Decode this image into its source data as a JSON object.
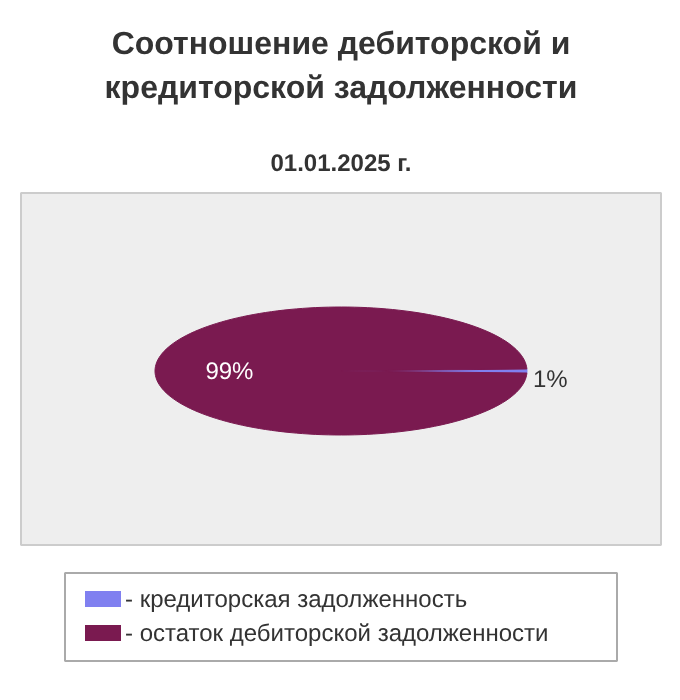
{
  "chart_data": {
    "type": "pie",
    "title": "Соотношение дебиторской и кредиторской задолженности",
    "subtitle": "01.01.2025 г.",
    "categories": [
      "- кредиторская задолженность",
      "- остаток дебиторской задолженности"
    ],
    "values": [
      1,
      99
    ],
    "colors": [
      "#8080f0",
      "#7a1a50"
    ],
    "value_labels": [
      "1%",
      "99%"
    ],
    "legend": "bottom"
  }
}
